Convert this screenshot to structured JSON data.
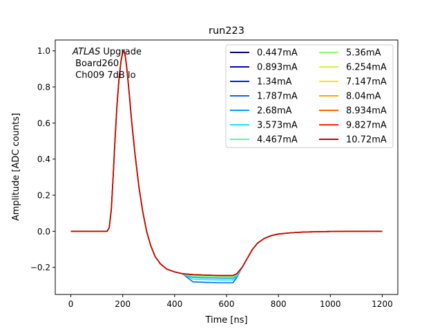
{
  "chart_data": {
    "type": "line",
    "title": "run223",
    "xlabel": "Time [ns]",
    "ylabel": "Amplitude [ADC counts]",
    "xlim": [
      -60,
      1260
    ],
    "ylim": [
      -0.35,
      1.06
    ],
    "xticks": [
      0,
      200,
      400,
      600,
      800,
      1000,
      1200
    ],
    "yticks": [
      -0.2,
      0.0,
      0.2,
      0.4,
      0.6,
      0.8,
      1.0
    ],
    "ytick_labels": [
      "−0.2",
      "0.0",
      "0.2",
      "0.4",
      "0.6",
      "0.8",
      "1.0"
    ],
    "grid": false,
    "legend_position": "top-right",
    "legend_columns": 2,
    "annotation": {
      "italic": "ATLAS",
      "rest": " Upgrade",
      "line2": " Board260",
      "line3": " Ch009 7dB lo"
    },
    "base_curve": {
      "x": [
        0,
        130,
        140,
        148,
        156,
        163,
        170,
        178,
        186,
        194,
        200,
        205,
        210,
        216,
        224,
        235,
        248,
        262,
        277,
        292,
        308,
        325,
        345,
        370,
        400,
        430,
        470,
        520,
        580,
        625,
        640,
        660,
        680,
        700,
        720,
        745,
        770,
        800,
        850,
        900,
        1000,
        1100,
        1200
      ],
      "y": [
        0.0,
        0.0,
        0.0,
        0.02,
        0.12,
        0.3,
        0.5,
        0.7,
        0.85,
        0.95,
        0.99,
        1.0,
        0.97,
        0.9,
        0.78,
        0.6,
        0.42,
        0.25,
        0.11,
        0.0,
        -0.08,
        -0.14,
        -0.18,
        -0.21,
        -0.225,
        -0.235,
        -0.24,
        -0.243,
        -0.245,
        -0.245,
        -0.235,
        -0.2,
        -0.15,
        -0.1,
        -0.065,
        -0.04,
        -0.025,
        -0.015,
        -0.008,
        -0.004,
        -0.001,
        0.0,
        0.0
      ]
    },
    "series": [
      {
        "name": "0.447mA",
        "color": "#00007f",
        "dip": 0.0
      },
      {
        "name": "0.893mA",
        "color": "#0000c8",
        "dip": 0.0
      },
      {
        "name": "1.34mA",
        "color": "#0014ff",
        "dip": 0.0
      },
      {
        "name": "1.787mA",
        "color": "#0064ff",
        "dip": 0.04
      },
      {
        "name": "2.68mA",
        "color": "#009cff",
        "dip": 0.015
      },
      {
        "name": "3.573mA",
        "color": "#10e4ff",
        "dip": 0.025
      },
      {
        "name": "4.467mA",
        "color": "#4dffaa",
        "dip": 0.01
      },
      {
        "name": "5.36mA",
        "color": "#8bff6c",
        "dip": 0.005
      },
      {
        "name": "6.254mA",
        "color": "#c3ff34",
        "dip": 0.0
      },
      {
        "name": "7.147mA",
        "color": "#ffe600",
        "dip": 0.0
      },
      {
        "name": "8.04mA",
        "color": "#ffa300",
        "dip": 0.0
      },
      {
        "name": "8.934mA",
        "color": "#ff6300",
        "dip": 0.0
      },
      {
        "name": "9.827mA",
        "color": "#ff2100",
        "dip": 0.0
      },
      {
        "name": "10.72mA",
        "color": "#c10000",
        "dip": 0.0
      }
    ]
  }
}
